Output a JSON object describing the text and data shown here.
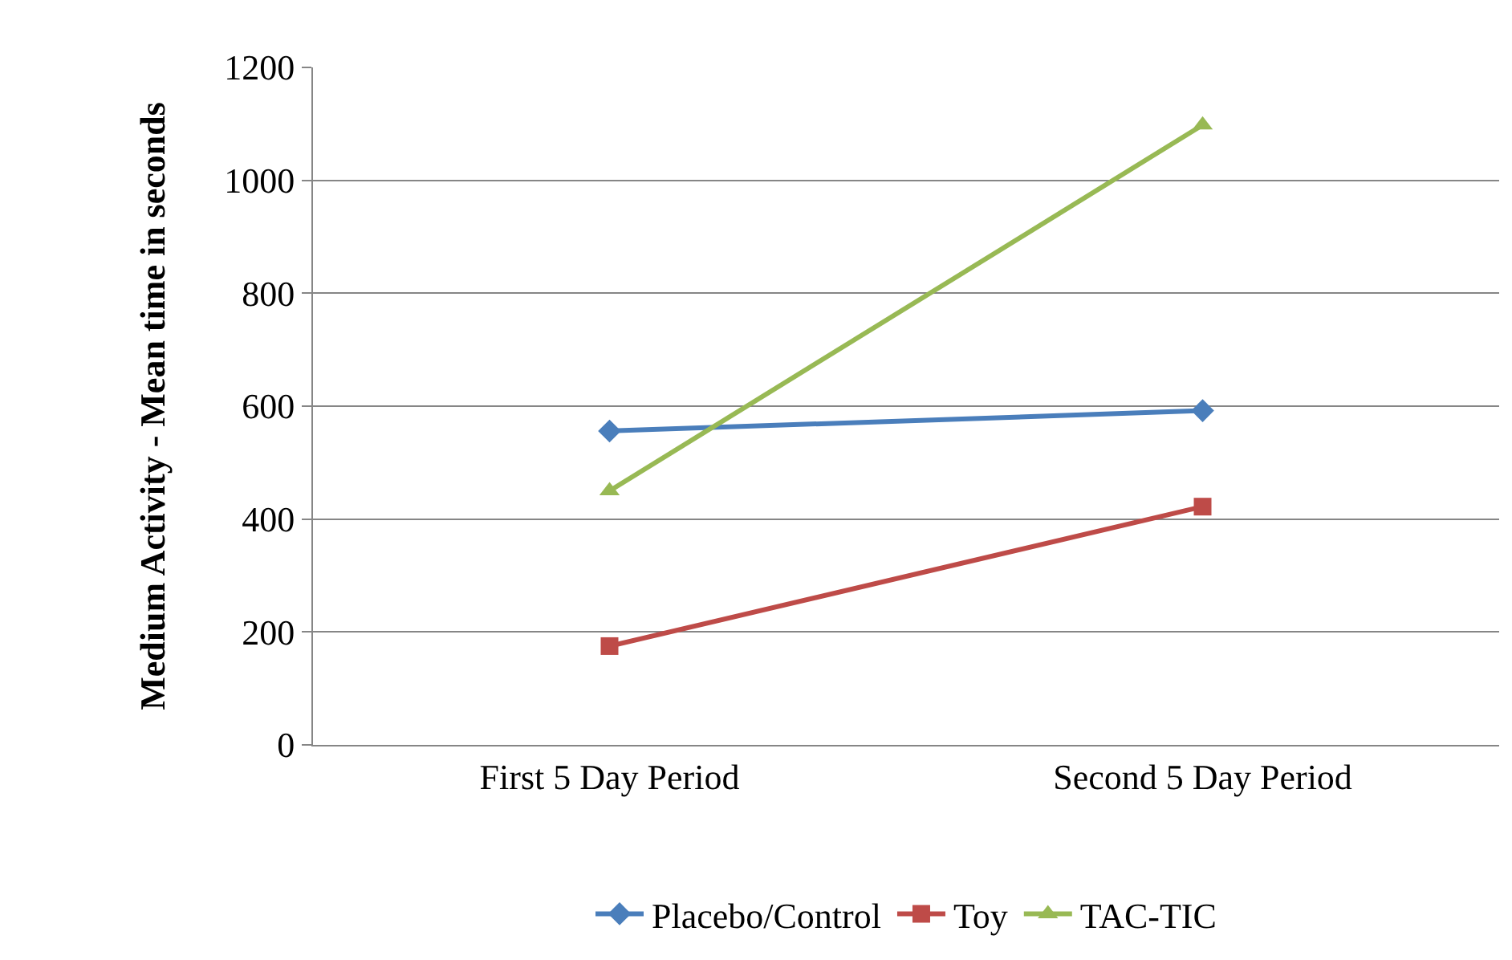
{
  "chart_data": {
    "type": "line",
    "ylabel": "Medium Activity - Mean time in seconds",
    "categories": [
      "First 5 Day Period",
      "Second 5 Day Period"
    ],
    "series": [
      {
        "name": "Placebo/Control",
        "color": "#4a7ebb",
        "values": [
          556,
          592
        ],
        "marker": "diamond"
      },
      {
        "name": "Toy",
        "color": "#be4b48",
        "values": [
          175,
          422
        ],
        "marker": "square"
      },
      {
        "name": "TAC-TIC",
        "color": "#98b954",
        "values": [
          450,
          1098
        ],
        "marker": "triangle"
      }
    ],
    "ylim": [
      0,
      1200
    ],
    "yticks": [
      0,
      200,
      400,
      600,
      800,
      1000,
      1200
    ],
    "grid": "y",
    "legend": "bottom",
    "line_style": "solid"
  }
}
